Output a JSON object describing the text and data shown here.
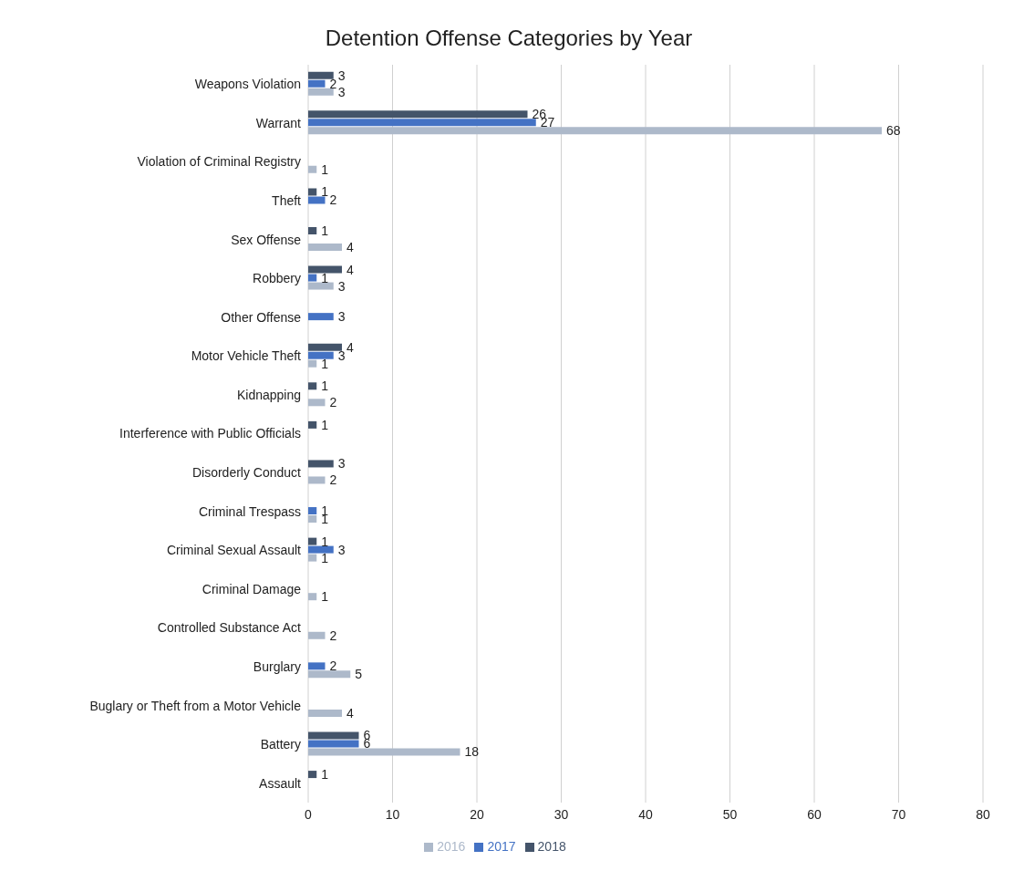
{
  "chart_data": {
    "type": "bar",
    "orientation": "horizontal",
    "title": "Detention Offense Categories by Year",
    "categories": [
      "Weapons Violation",
      "Warrant",
      "Violation of Criminal Registry",
      "Theft",
      "Sex Offense",
      "Robbery",
      "Other Offense",
      "Motor Vehicle Theft",
      "Kidnapping",
      "Interference with Public Officials",
      "Disorderly Conduct",
      "Criminal Trespass",
      "Criminal Sexual Assault",
      "Criminal Damage",
      "Controlled Substance Act",
      "Burglary",
      "Buglary or Theft from a Motor Vehicle",
      "Battery",
      "Assault"
    ],
    "series": [
      {
        "name": "2018",
        "color": "#44546a",
        "values": [
          3,
          26,
          null,
          1,
          1,
          4,
          null,
          4,
          1,
          1,
          3,
          null,
          1,
          null,
          null,
          null,
          null,
          6,
          1
        ]
      },
      {
        "name": "2017",
        "color": "#4472c4",
        "values": [
          2,
          27,
          null,
          2,
          null,
          1,
          3,
          3,
          null,
          null,
          null,
          1,
          3,
          null,
          null,
          2,
          null,
          6,
          null
        ]
      },
      {
        "name": "2016",
        "color": "#adb9ca",
        "values": [
          3,
          68,
          1,
          null,
          4,
          3,
          null,
          1,
          2,
          null,
          2,
          1,
          1,
          1,
          2,
          5,
          4,
          18,
          null
        ]
      }
    ],
    "xlim": [
      0,
      80
    ],
    "xticks": [
      0,
      10,
      20,
      30,
      40,
      50,
      60,
      70,
      80
    ],
    "grid": "x",
    "legend": "bottom",
    "data_labels": true
  }
}
